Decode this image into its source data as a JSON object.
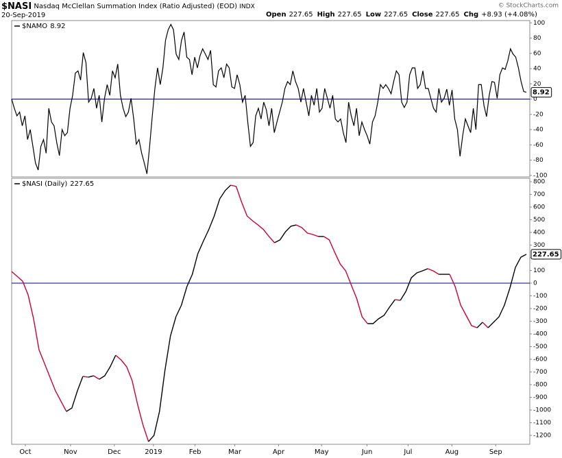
{
  "header": {
    "symbol": "$NASI",
    "description": "Nasdaq McClellan Summation Index (Ratio Adjusted) (EOD)",
    "exchange": "INDX",
    "date": "20-Sep-2019",
    "quote": [
      {
        "label": "Open",
        "value": 227.65
      },
      {
        "label": "High",
        "value": 227.65
      },
      {
        "label": "Low",
        "value": 227.65
      },
      {
        "label": "Close",
        "value": 227.65
      },
      {
        "label": "Chg",
        "value": "+8.93 (+4.08%)"
      }
    ],
    "watermark": "© StockCharts.com"
  },
  "chart_data": [
    {
      "type": "line",
      "series": [
        {
          "name": "$NAMO",
          "color": "#000000",
          "values": [
            0,
            -12,
            -22,
            -17,
            -35,
            -22,
            -53,
            -40,
            -62,
            -84,
            -93,
            -62,
            -53,
            -71,
            -12,
            -30,
            -35,
            -57,
            -74,
            -40,
            -48,
            -44,
            -12,
            5,
            34,
            37,
            25,
            61,
            48,
            -4,
            1,
            14,
            -12,
            5,
            -30,
            1,
            19,
            5,
            37,
            28,
            46,
            5,
            -12,
            -23,
            -17,
            1,
            -26,
            -59,
            -53,
            -71,
            -84,
            -98,
            -62,
            -22,
            14,
            41,
            19,
            41,
            77,
            91,
            98,
            91,
            59,
            52,
            77,
            88,
            55,
            52,
            32,
            55,
            41,
            57,
            66,
            59,
            52,
            64,
            19,
            16,
            37,
            41,
            28,
            46,
            41,
            16,
            14,
            32,
            19,
            -4,
            5,
            -30,
            -62,
            -57,
            -22,
            -12,
            -26,
            -4,
            -14,
            -35,
            -12,
            -44,
            -30,
            -17,
            -4,
            14,
            23,
            19,
            37,
            23,
            14,
            -4,
            14,
            -4,
            -22,
            5,
            -8,
            14,
            -17,
            -12,
            14,
            1,
            -12,
            5,
            -26,
            -30,
            -26,
            -44,
            -57,
            -4,
            -22,
            -35,
            -12,
            -48,
            -30,
            -40,
            -48,
            -59,
            -30,
            -22,
            -4,
            19,
            14,
            19,
            14,
            7,
            23,
            37,
            32,
            -4,
            -11,
            -4,
            32,
            41,
            41,
            14,
            19,
            37,
            14,
            14,
            1,
            -12,
            -17,
            14,
            -4,
            1,
            13,
            -8,
            12,
            -26,
            -40,
            -75,
            -48,
            -26,
            -35,
            -44,
            -12,
            -40,
            19,
            19,
            -8,
            -23,
            5,
            23,
            22,
            1,
            32,
            41,
            39,
            50,
            66,
            59,
            55,
            41,
            23,
            10,
            8.92
          ]
        }
      ],
      "ylim": [
        -102,
        103
      ],
      "yticks": [
        -100,
        -80,
        -60,
        -40,
        -20,
        0,
        20,
        40,
        60,
        80,
        100
      ]
    },
    {
      "type": "line",
      "series": [
        {
          "name": "$NASI (Daily)",
          "color": "#000000",
          "down_color": "#cc0033",
          "values": [
            92,
            54,
            16,
            -92,
            -281,
            -524,
            -632,
            -741,
            -849,
            -930,
            -1011,
            -984,
            -849,
            -735,
            -741,
            -730,
            -757,
            -730,
            -659,
            -568,
            -605,
            -659,
            -768,
            -957,
            -1119,
            -1249,
            -1200,
            -1011,
            -686,
            -416,
            -265,
            -173,
            -27,
            70,
            232,
            330,
            422,
            530,
            665,
            730,
            773,
            762,
            638,
            530,
            492,
            459,
            422,
            368,
            319,
            341,
            405,
            449,
            459,
            438,
            395,
            384,
            368,
            368,
            341,
            243,
            151,
            97,
            -11,
            -119,
            -265,
            -319,
            -319,
            -281,
            -254,
            -189,
            -130,
            -135,
            -65,
            43,
            81,
            97,
            114,
            97,
            70,
            70,
            70,
            -27,
            -173,
            -254,
            -335,
            -351,
            -308,
            -351,
            -308,
            -265,
            -173,
            -38,
            124,
            205,
            227.65
          ]
        }
      ],
      "xlim": [
        0,
        94
      ],
      "xticks": [
        {
          "value": 2.5,
          "label": "Oct"
        },
        {
          "value": 10.75,
          "label": "Nov"
        },
        {
          "value": 18.75,
          "label": "Dec"
        },
        {
          "value": 25.9,
          "label": "2019"
        },
        {
          "value": 33.5,
          "label": "Feb"
        },
        {
          "value": 40.75,
          "label": "Mar"
        },
        {
          "value": 48.75,
          "label": "Apr"
        },
        {
          "value": 56.6,
          "label": "May"
        },
        {
          "value": 64.9,
          "label": "Jun"
        },
        {
          "value": 72.4,
          "label": "Jul"
        },
        {
          "value": 80.4,
          "label": "Aug"
        },
        {
          "value": 88.4,
          "label": "Sep"
        }
      ],
      "ylim": [
        -1270,
        827
      ],
      "yticks": [
        -1200,
        -1100,
        -1000,
        -900,
        -800,
        -700,
        -600,
        -500,
        -400,
        -300,
        -200,
        -100,
        0,
        100,
        200,
        300,
        400,
        500,
        600,
        700,
        800
      ]
    }
  ]
}
